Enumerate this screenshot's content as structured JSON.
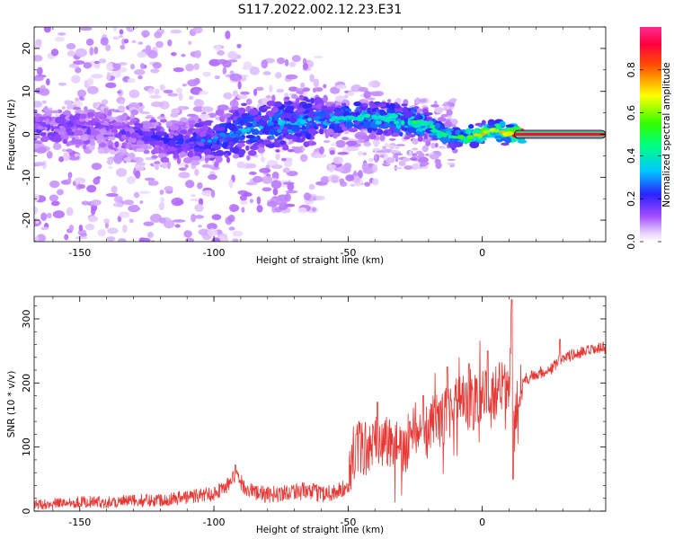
{
  "title": "S117.2022.002.12.23.E31",
  "chart_data": [
    {
      "type": "heatmap",
      "xlabel": "Height of straight line (km)",
      "ylabel": "Frequency (Hz)",
      "xlim": [
        -167,
        46
      ],
      "ylim": [
        -25,
        25
      ],
      "xticks": [
        -150,
        -100,
        -50,
        0
      ],
      "xtick_labels": [
        "-150",
        "-100",
        "-50",
        "0"
      ],
      "yticks": [
        -20,
        -10,
        0,
        10,
        20
      ],
      "ytick_labels": [
        "-20",
        "-10",
        "0",
        "10",
        "20"
      ],
      "colorbar": {
        "label": "Normalized spectral amplitude",
        "range": [
          0,
          1
        ],
        "ticks": [
          0.0,
          0.2,
          0.4,
          0.6,
          0.8
        ],
        "tick_labels": [
          "0.0",
          "0.2",
          "0.4",
          "0.6",
          "0.8"
        ],
        "colormap": "white-violet-blue-cyan-green-yellow-red-magenta"
      },
      "ridge": {
        "description_points": [
          {
            "x": -167,
            "y": 1.0,
            "amp": 0.15
          },
          {
            "x": -150,
            "y": 1.5,
            "amp": 0.15
          },
          {
            "x": -130,
            "y": 0.5,
            "amp": 0.15
          },
          {
            "x": -120,
            "y": -1.0,
            "amp": 0.18
          },
          {
            "x": -110,
            "y": -1.5,
            "amp": 0.2
          },
          {
            "x": -100,
            "y": -1.0,
            "amp": 0.25
          },
          {
            "x": -90,
            "y": 1.0,
            "amp": 0.3
          },
          {
            "x": -80,
            "y": 2.0,
            "amp": 0.32
          },
          {
            "x": -70,
            "y": 3.0,
            "amp": 0.3
          },
          {
            "x": -60,
            "y": 3.5,
            "amp": 0.3
          },
          {
            "x": -50,
            "y": 4.0,
            "amp": 0.33
          },
          {
            "x": -40,
            "y": 4.0,
            "amp": 0.35
          },
          {
            "x": -30,
            "y": 3.0,
            "amp": 0.38
          },
          {
            "x": -20,
            "y": 2.0,
            "amp": 0.4
          },
          {
            "x": -15,
            "y": 0.0,
            "amp": 0.42
          },
          {
            "x": -10,
            "y": -1.0,
            "amp": 0.45
          },
          {
            "x": -5,
            "y": -0.5,
            "amp": 0.5
          },
          {
            "x": 0,
            "y": 0.0,
            "amp": 0.6
          },
          {
            "x": 5,
            "y": 1.0,
            "amp": 0.55
          },
          {
            "x": 10,
            "y": 0.0,
            "amp": 0.7
          },
          {
            "x": 15,
            "y": 0.0,
            "amp": 0.9
          },
          {
            "x": 45,
            "y": 0.0,
            "amp": 0.95
          }
        ]
      }
    },
    {
      "type": "line",
      "xlabel": "Height of straight line (km)",
      "ylabel": "SNR (10 * v/v)",
      "xlim": [
        -167,
        46
      ],
      "ylim": [
        0,
        335
      ],
      "xticks": [
        -150,
        -100,
        -50,
        0
      ],
      "xtick_labels": [
        "-150",
        "-100",
        "-50",
        "0"
      ],
      "yticks": [
        0,
        100,
        200,
        300
      ],
      "ytick_labels": [
        "0",
        "100",
        "200",
        "300"
      ],
      "series_color": "#e53935",
      "series": [
        {
          "x": [
            -167,
            -160,
            -150,
            -140,
            -130,
            -120,
            -110,
            -100,
            -95,
            -92,
            -88,
            -85,
            -80,
            -75,
            -70,
            -65,
            -60,
            -55,
            -50,
            -48,
            -45,
            -42,
            -40,
            -35,
            -30,
            -25,
            -22,
            -18,
            -15,
            -12,
            -10,
            -5,
            0,
            5,
            8,
            10,
            11,
            12,
            13,
            15,
            18,
            20,
            25,
            28,
            30,
            35,
            40,
            46
          ],
          "y": [
            10,
            12,
            15,
            14,
            16,
            18,
            22,
            28,
            40,
            55,
            35,
            30,
            25,
            28,
            32,
            30,
            28,
            30,
            35,
            90,
            100,
            95,
            105,
            110,
            95,
            130,
            110,
            150,
            140,
            160,
            170,
            165,
            175,
            185,
            195,
            200,
            330,
            120,
            180,
            205,
            210,
            215,
            220,
            230,
            240,
            245,
            250,
            255
          ],
          "peaks": [
            {
              "x": -92,
              "y": 72
            },
            {
              "x": -47,
              "y": 120
            },
            {
              "x": -39,
              "y": 170
            },
            {
              "x": -27,
              "y": 140
            },
            {
              "x": -22,
              "y": 180
            },
            {
              "x": -13,
              "y": 225
            },
            {
              "x": -5,
              "y": 230
            },
            {
              "x": 2,
              "y": 250
            },
            {
              "x": 11,
              "y": 330
            },
            {
              "x": 11.5,
              "y": 50
            },
            {
              "x": 29,
              "y": 268
            }
          ]
        }
      ]
    }
  ]
}
